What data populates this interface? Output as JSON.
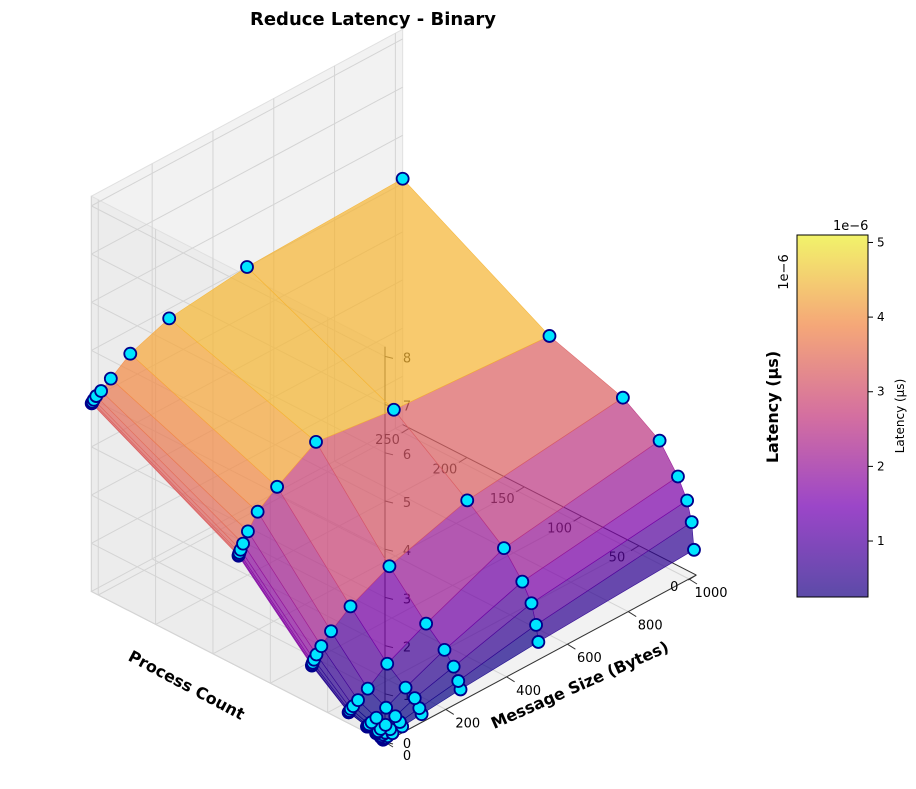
{
  "chart_data": {
    "type": "surface3d",
    "title": "Reduce Latency - Binary",
    "xlabel": "Process Count",
    "ylabel": "Message Size (Bytes)",
    "zlabel": "Latency (µs)",
    "x_ticks": [
      "0",
      "50",
      "100",
      "150",
      "200",
      "250"
    ],
    "y_ticks": [
      "0",
      "200",
      "400",
      "600",
      "800",
      "1000"
    ],
    "z_ticks": [
      "0",
      "1",
      "2",
      "3",
      "4",
      "5",
      "6",
      "7",
      "8"
    ],
    "z_offset_label": "1e−6",
    "xlim": [
      0,
      256
    ],
    "ylim": [
      0,
      1024
    ],
    "zlim": [
      0,
      8.2
    ],
    "process_counts": [
      2,
      4,
      8,
      16,
      32,
      64,
      128,
      256
    ],
    "message_sizes": [
      1,
      2,
      4,
      8,
      16,
      32,
      64,
      128,
      256,
      512,
      1024
    ],
    "latency_scale": "1e-6",
    "latency": [
      [
        0.02,
        0.02,
        0.03,
        0.03,
        0.04,
        0.05,
        0.08,
        0.12,
        0.2,
        0.32,
        0.5
      ],
      [
        0.05,
        0.06,
        0.06,
        0.08,
        0.09,
        0.11,
        0.15,
        0.22,
        0.35,
        0.65,
        1.05
      ],
      [
        0.08,
        0.08,
        0.09,
        0.1,
        0.12,
        0.15,
        0.22,
        0.38,
        0.6,
        1.05,
        1.45
      ],
      [
        0.12,
        0.12,
        0.13,
        0.14,
        0.16,
        0.2,
        0.3,
        0.5,
        0.85,
        1.4,
        1.85
      ],
      [
        0.22,
        0.22,
        0.24,
        0.27,
        0.3,
        0.37,
        0.5,
        0.8,
        1.2,
        1.9,
        2.4
      ],
      [
        0.8,
        0.82,
        0.85,
        0.9,
        0.98,
        1.1,
        1.3,
        1.6,
        2.0,
        2.5,
        2.9
      ],
      [
        2.3,
        2.32,
        2.35,
        2.4,
        2.5,
        2.7,
        3.0,
        3.3,
        3.8,
        3.6,
        3.4
      ],
      [
        3.9,
        3.9,
        3.92,
        3.95,
        4.0,
        4.05,
        4.2,
        4.5,
        4.8,
        5.0,
        5.1
      ]
    ],
    "colorbar": {
      "label": "Latency (µs)",
      "offset_label": "1e−6",
      "ticks": [
        "1",
        "2",
        "3",
        "4",
        "5"
      ],
      "range": [
        0.25,
        5.1
      ],
      "colormap": "plasma"
    },
    "marker_color": "#00e5ff",
    "marker_edge_color": "#00008b",
    "grid": true
  }
}
